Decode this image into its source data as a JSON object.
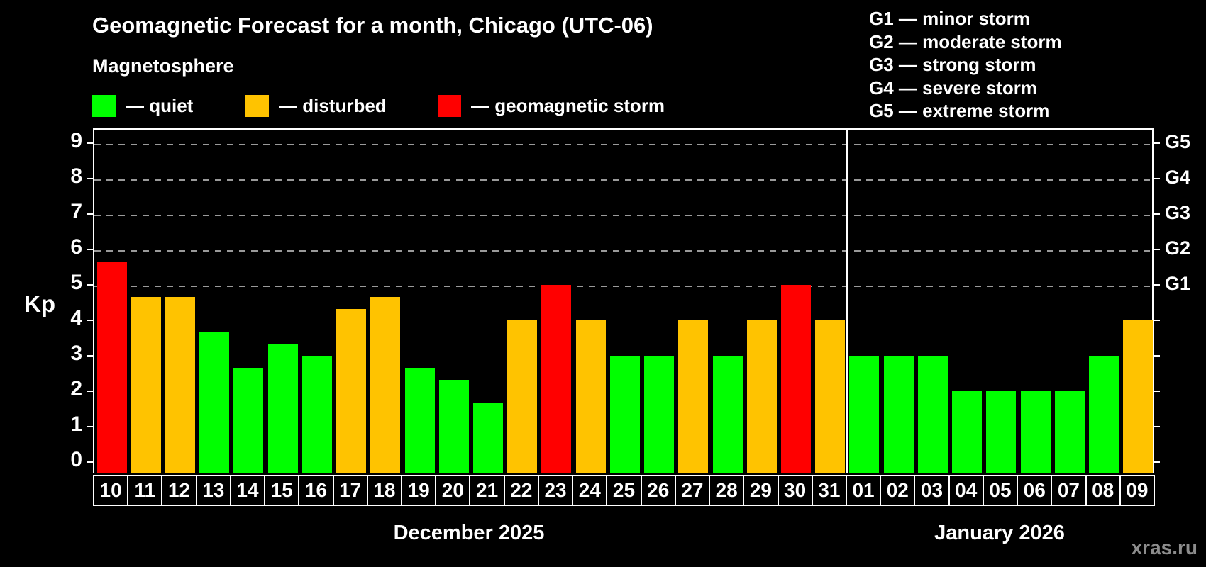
{
  "header": {
    "title": "Geomagnetic Forecast for a month, Chicago (UTC-06)",
    "subtitle": "Magnetosphere"
  },
  "legend": {
    "items": [
      {
        "name": "quiet",
        "label": "— quiet",
        "color": "#00ff00"
      },
      {
        "name": "disturbed",
        "label": "— disturbed",
        "color": "#ffc300"
      },
      {
        "name": "storm",
        "label": "— geomagnetic storm",
        "color": "#ff0000"
      }
    ]
  },
  "storm_scale": {
    "lines": [
      "G1 — minor storm",
      "G2 — moderate storm",
      "G3 — strong storm",
      "G4 — severe storm",
      "G5 — extreme storm"
    ]
  },
  "axes": {
    "y_label": "Kp",
    "y_ticks": [
      0,
      1,
      2,
      3,
      4,
      5,
      6,
      7,
      8,
      9
    ],
    "right_labels": [
      {
        "text": "G1",
        "kp": 5
      },
      {
        "text": "G2",
        "kp": 6
      },
      {
        "text": "G3",
        "kp": 7
      },
      {
        "text": "G4",
        "kp": 8
      },
      {
        "text": "G5",
        "kp": 9
      }
    ],
    "gridline_kp": [
      5,
      6,
      7,
      8,
      9
    ]
  },
  "months": [
    {
      "label": "December 2025",
      "days": 22
    },
    {
      "label": "January 2026",
      "days": 9
    }
  ],
  "watermark": "xras.ru",
  "chart_data": {
    "type": "bar",
    "title": "Geomagnetic Forecast for a month, Chicago (UTC-06)",
    "ylabel": "Kp",
    "ylim": [
      0,
      9
    ],
    "legend_position": "top-left",
    "grid": "dashed horizontal at Kp 5-9 (G1-G5 levels)",
    "status_colors": {
      "quiet": "#00ff00",
      "disturbed": "#ffc300",
      "storm": "#ff0000"
    },
    "points": [
      {
        "day": "10",
        "kp": 5.67,
        "status": "storm"
      },
      {
        "day": "11",
        "kp": 4.67,
        "status": "disturbed"
      },
      {
        "day": "12",
        "kp": 4.67,
        "status": "disturbed"
      },
      {
        "day": "13",
        "kp": 3.67,
        "status": "quiet"
      },
      {
        "day": "14",
        "kp": 2.67,
        "status": "quiet"
      },
      {
        "day": "15",
        "kp": 3.33,
        "status": "quiet"
      },
      {
        "day": "16",
        "kp": 3.0,
        "status": "quiet"
      },
      {
        "day": "17",
        "kp": 4.33,
        "status": "disturbed"
      },
      {
        "day": "18",
        "kp": 4.67,
        "status": "disturbed"
      },
      {
        "day": "19",
        "kp": 2.67,
        "status": "quiet"
      },
      {
        "day": "20",
        "kp": 2.33,
        "status": "quiet"
      },
      {
        "day": "21",
        "kp": 1.67,
        "status": "quiet"
      },
      {
        "day": "22",
        "kp": 4.0,
        "status": "disturbed"
      },
      {
        "day": "23",
        "kp": 5.0,
        "status": "storm"
      },
      {
        "day": "24",
        "kp": 4.0,
        "status": "disturbed"
      },
      {
        "day": "25",
        "kp": 3.0,
        "status": "quiet"
      },
      {
        "day": "26",
        "kp": 3.0,
        "status": "quiet"
      },
      {
        "day": "27",
        "kp": 4.0,
        "status": "disturbed"
      },
      {
        "day": "28",
        "kp": 3.0,
        "status": "quiet"
      },
      {
        "day": "29",
        "kp": 4.0,
        "status": "disturbed"
      },
      {
        "day": "30",
        "kp": 5.0,
        "status": "storm"
      },
      {
        "day": "31",
        "kp": 4.0,
        "status": "disturbed"
      },
      {
        "day": "01",
        "kp": 3.0,
        "status": "quiet"
      },
      {
        "day": "02",
        "kp": 3.0,
        "status": "quiet"
      },
      {
        "day": "03",
        "kp": 3.0,
        "status": "quiet"
      },
      {
        "day": "04",
        "kp": 2.0,
        "status": "quiet"
      },
      {
        "day": "05",
        "kp": 2.0,
        "status": "quiet"
      },
      {
        "day": "06",
        "kp": 2.0,
        "status": "quiet"
      },
      {
        "day": "07",
        "kp": 2.0,
        "status": "quiet"
      },
      {
        "day": "08",
        "kp": 3.0,
        "status": "quiet"
      },
      {
        "day": "09",
        "kp": 4.0,
        "status": "disturbed"
      }
    ]
  }
}
